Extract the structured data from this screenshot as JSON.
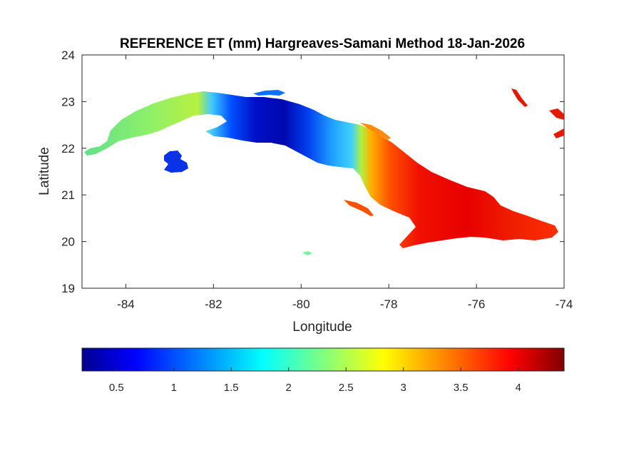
{
  "title": "REFERENCE ET (mm) Hargreaves-Samani Method  18-Jan-2026",
  "map": {
    "xlabel": "Longitude",
    "ylabel": "Latitude",
    "xlim": [
      -85,
      -74
    ],
    "ylim": [
      19,
      24
    ],
    "xticks": [
      -84,
      -82,
      -80,
      -78,
      -76,
      -74
    ],
    "yticks": [
      19,
      20,
      21,
      22,
      23,
      24
    ],
    "xtick_labels": [
      "-84",
      "-82",
      "-80",
      "-78",
      "-76",
      "-74"
    ],
    "ytick_labels": [
      "19",
      "20",
      "21",
      "22",
      "23",
      "24"
    ],
    "colormap": "jet",
    "region": "Cuba"
  },
  "colorbar": {
    "orientation": "horizontal",
    "placement": "below",
    "range": [
      0.2,
      4.4
    ],
    "ticks": [
      0.5,
      1,
      1.5,
      2,
      2.5,
      3,
      3.5,
      4
    ],
    "tick_labels": [
      "0.5",
      "1",
      "1.5",
      "2",
      "2.5",
      "3",
      "3.5",
      "4"
    ],
    "colors": [
      "#00008f",
      "#0000ff",
      "#00ffff",
      "#ffff00",
      "#ff0000",
      "#800000"
    ]
  },
  "chart_data": {
    "type": "heatmap",
    "title": "REFERENCE ET (mm) Hargreaves-Samani Method  18-Jan-2026",
    "xlabel": "Longitude",
    "ylabel": "Latitude",
    "xlim": [
      -85,
      -74
    ],
    "ylim": [
      19,
      24
    ],
    "value_range": [
      0.2,
      4.4
    ],
    "regional_values": [
      {
        "lon": -84.6,
        "lat": 21.9,
        "value": 2.2
      },
      {
        "lon": -83.8,
        "lat": 22.5,
        "value": 2.3
      },
      {
        "lon": -82.9,
        "lat": 22.8,
        "value": 2.5
      },
      {
        "lon": -82.9,
        "lat": 21.7,
        "value": 0.8
      },
      {
        "lon": -82.0,
        "lat": 22.8,
        "value": 1.7
      },
      {
        "lon": -81.5,
        "lat": 22.5,
        "value": 0.8
      },
      {
        "lon": -80.7,
        "lat": 22.5,
        "value": 0.4
      },
      {
        "lon": -79.8,
        "lat": 22.2,
        "value": 1.0
      },
      {
        "lon": -79.2,
        "lat": 22.0,
        "value": 2.2
      },
      {
        "lon": -78.7,
        "lat": 21.9,
        "value": 3.1
      },
      {
        "lon": -78.0,
        "lat": 21.5,
        "value": 3.8
      },
      {
        "lon": -77.0,
        "lat": 21.0,
        "value": 4.0
      },
      {
        "lon": -76.5,
        "lat": 20.5,
        "value": 4.1
      },
      {
        "lon": -75.5,
        "lat": 20.4,
        "value": 4.0
      },
      {
        "lon": -74.6,
        "lat": 20.2,
        "value": 3.9
      }
    ]
  }
}
